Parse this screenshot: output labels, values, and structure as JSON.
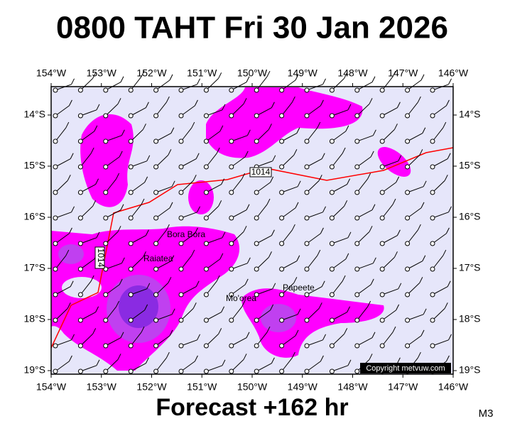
{
  "header": {
    "title": "0800 TAHT Fri 30 Jan 2026"
  },
  "map": {
    "longitudes": [
      "154°W",
      "153°W",
      "152°W",
      "151°W",
      "150°W",
      "149°W",
      "148°W",
      "147°W",
      "146°W"
    ],
    "latitudes": [
      "14°S",
      "15°S",
      "16°S",
      "17°S",
      "18°S",
      "19°S"
    ],
    "places": [
      "Bora Bora",
      "Raiatea",
      "Mo'orea",
      "Papeete"
    ],
    "isobar_labels": [
      "1014",
      "1014"
    ],
    "copyright": "Copyright metvuw.com"
  },
  "footer": {
    "caption": "Forecast +162 hr",
    "model": "M3"
  }
}
